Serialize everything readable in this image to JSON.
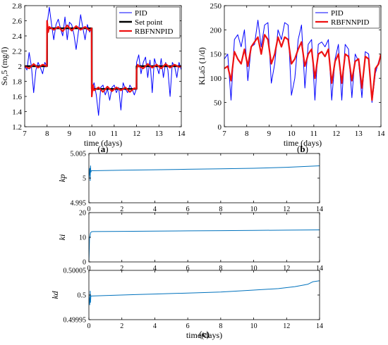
{
  "chart_data": [
    {
      "type": "line",
      "panel_label": "(a)",
      "xlabel": "time (days)",
      "ylabel": "So,5 (mg/l)",
      "xlim": [
        7,
        14
      ],
      "ylim": [
        1.2,
        2.8
      ],
      "xticks": [
        7,
        8,
        9,
        10,
        11,
        12,
        13,
        14
      ],
      "yticks": [
        1.2,
        1.4,
        1.6,
        1.8,
        2,
        2.2,
        2.4,
        2.6,
        2.8
      ],
      "legend": "top-right",
      "series": [
        {
          "name": "PID",
          "color": "#0000ff",
          "x": [
            7,
            7.1,
            7.2,
            7.3,
            7.4,
            7.5,
            7.6,
            7.7,
            7.8,
            7.9,
            7.99,
            8.0,
            8.1,
            8.2,
            8.3,
            8.4,
            8.5,
            8.6,
            8.7,
            8.8,
            8.9,
            9.0,
            9.1,
            9.2,
            9.3,
            9.4,
            9.5,
            9.6,
            9.7,
            9.8,
            9.9,
            9.99,
            10.0,
            10.1,
            10.2,
            10.3,
            10.4,
            10.5,
            10.6,
            10.7,
            10.8,
            10.9,
            11.0,
            11.1,
            11.2,
            11.3,
            11.4,
            11.5,
            11.6,
            11.7,
            11.8,
            11.9,
            11.99,
            12.0,
            12.1,
            12.2,
            12.3,
            12.4,
            12.5,
            12.6,
            12.7,
            12.8,
            12.9,
            13.0,
            13.1,
            13.2,
            13.3,
            13.4,
            13.5,
            13.6,
            13.7,
            13.8,
            13.9,
            14.0
          ],
          "y": [
            2.0,
            1.95,
            2.18,
            2.0,
            1.65,
            1.95,
            2.05,
            1.98,
            1.9,
            2.05,
            2.0,
            2.55,
            2.78,
            2.55,
            2.35,
            2.55,
            2.62,
            2.5,
            2.4,
            2.65,
            2.35,
            2.58,
            2.55,
            2.42,
            2.22,
            2.45,
            2.68,
            2.5,
            2.35,
            2.55,
            2.45,
            2.5,
            1.68,
            1.78,
            1.62,
            1.35,
            1.72,
            1.75,
            1.62,
            1.7,
            1.55,
            1.72,
            1.75,
            1.65,
            1.72,
            1.42,
            1.78,
            1.7,
            1.65,
            1.75,
            1.7,
            1.62,
            1.7,
            2.05,
            2.15,
            1.9,
            2.05,
            2.12,
            1.85,
            2.08,
            1.65,
            2.1,
            2.0,
            1.9,
            2.1,
            1.85,
            2.05,
            1.95,
            1.6,
            2.05,
            2.0,
            1.85,
            2.05,
            1.95
          ]
        },
        {
          "name": "Set point",
          "color": "#000000",
          "x": [
            7,
            8,
            8,
            10,
            10,
            12,
            12,
            14
          ],
          "y": [
            2,
            2,
            2.5,
            2.5,
            1.7,
            1.7,
            2,
            2
          ]
        },
        {
          "name": "RBFNNPID",
          "color": "#ee1111",
          "x": [
            7,
            7.2,
            7.4,
            7.6,
            7.8,
            7.99,
            8.0,
            8.05,
            8.1,
            8.3,
            8.5,
            8.7,
            8.9,
            9.1,
            9.3,
            9.5,
            9.7,
            9.9,
            9.99,
            10.0,
            10.05,
            10.1,
            10.3,
            10.5,
            10.7,
            10.9,
            11.1,
            11.3,
            11.5,
            11.7,
            11.9,
            11.99,
            12.0,
            12.05,
            12.1,
            12.3,
            12.5,
            12.7,
            12.9,
            13.1,
            13.3,
            13.5,
            13.7,
            13.9,
            14.0
          ],
          "y": [
            2.0,
            1.97,
            2.03,
            1.98,
            2.02,
            2.0,
            2.6,
            2.45,
            2.52,
            2.48,
            2.52,
            2.46,
            2.54,
            2.47,
            2.53,
            2.48,
            2.52,
            2.47,
            2.5,
            1.6,
            1.75,
            1.68,
            1.72,
            1.66,
            1.73,
            1.67,
            1.72,
            1.68,
            1.72,
            1.66,
            1.71,
            1.7,
            1.95,
            2.02,
            2.0,
            1.97,
            2.03,
            1.98,
            2.02,
            1.97,
            2.03,
            1.98,
            2.02,
            1.99,
            2.0
          ]
        }
      ]
    },
    {
      "type": "line",
      "panel_label": "(b)",
      "xlabel": "time (days)",
      "ylabel": "KLa5 (1/d)",
      "xlim": [
        7,
        14
      ],
      "ylim": [
        0,
        250
      ],
      "xticks": [
        7,
        8,
        9,
        10,
        11,
        12,
        13,
        14
      ],
      "yticks": [
        0,
        50,
        100,
        150,
        200,
        250
      ],
      "legend": "top-right",
      "series": [
        {
          "name": "PID",
          "color": "#0000ff",
          "x": [
            7,
            7.15,
            7.3,
            7.45,
            7.6,
            7.75,
            7.9,
            8.05,
            8.2,
            8.35,
            8.5,
            8.65,
            8.8,
            8.95,
            9.1,
            9.25,
            9.4,
            9.55,
            9.7,
            9.85,
            10.0,
            10.15,
            10.3,
            10.45,
            10.6,
            10.75,
            10.9,
            11.05,
            11.2,
            11.35,
            11.5,
            11.65,
            11.8,
            11.95,
            12.1,
            12.25,
            12.4,
            12.55,
            12.7,
            12.85,
            13.0,
            13.15,
            13.3,
            13.45,
            13.6,
            13.75,
            13.9,
            14.0
          ],
          "y": [
            140,
            150,
            55,
            180,
            190,
            165,
            200,
            95,
            165,
            170,
            220,
            165,
            210,
            215,
            90,
            130,
            200,
            180,
            215,
            210,
            65,
            100,
            180,
            210,
            80,
            170,
            180,
            55,
            170,
            175,
            165,
            180,
            55,
            140,
            170,
            55,
            170,
            160,
            60,
            150,
            135,
            60,
            155,
            150,
            50,
            110,
            135,
            150
          ]
        },
        {
          "name": "RBFNNPID",
          "color": "#ee1111",
          "x": [
            7,
            7.15,
            7.3,
            7.45,
            7.6,
            7.75,
            7.9,
            8.05,
            8.2,
            8.35,
            8.5,
            8.65,
            8.8,
            8.95,
            9.1,
            9.25,
            9.4,
            9.55,
            9.7,
            9.85,
            10.0,
            10.15,
            10.3,
            10.45,
            10.6,
            10.75,
            10.9,
            11.05,
            11.2,
            11.35,
            11.5,
            11.65,
            11.8,
            11.95,
            12.1,
            12.25,
            12.4,
            12.55,
            12.7,
            12.85,
            13.0,
            13.15,
            13.3,
            13.45,
            13.6,
            13.75,
            13.9,
            14.0
          ],
          "y": [
            120,
            125,
            95,
            155,
            140,
            130,
            160,
            125,
            165,
            175,
            185,
            150,
            190,
            180,
            130,
            150,
            185,
            165,
            185,
            180,
            130,
            140,
            160,
            175,
            125,
            150,
            160,
            100,
            150,
            155,
            145,
            160,
            90,
            135,
            150,
            90,
            150,
            145,
            95,
            135,
            140,
            80,
            145,
            140,
            55,
            120,
            130,
            150
          ]
        }
      ]
    },
    {
      "type": "line",
      "ylabel": "kp",
      "xlim": [
        0,
        14
      ],
      "ylim": [
        4.995,
        5.005
      ],
      "xticks": [
        0,
        2,
        4,
        6,
        8,
        10,
        12,
        14
      ],
      "yticks": [
        4.995,
        5,
        5.005
      ],
      "ytick_labels": [
        "4.995",
        "5",
        "5.005"
      ],
      "series": [
        {
          "color": "#0072bd",
          "x": [
            0,
            0.05,
            0.08,
            0.1,
            0.12,
            0.15,
            0.2,
            2,
            4,
            6,
            8,
            10,
            12,
            14
          ],
          "y": [
            5.0,
            5.002,
            4.9995,
            5.0025,
            5.0012,
            5.0015,
            5.0015,
            5.0016,
            5.0017,
            5.0018,
            5.0019,
            5.002,
            5.0022,
            5.0025
          ]
        }
      ]
    },
    {
      "type": "line",
      "ylabel": "ki",
      "xlim": [
        0,
        14
      ],
      "ylim": [
        0,
        20
      ],
      "xticks": [
        0,
        2,
        4,
        6,
        8,
        10,
        12,
        14
      ],
      "yticks": [
        0,
        10,
        20
      ],
      "series": [
        {
          "color": "#0072bd",
          "x": [
            0,
            0.04,
            0.06,
            0.1,
            0.15,
            0.25,
            2,
            4,
            6,
            8,
            10,
            12,
            14
          ],
          "y": [
            0,
            9.5,
            10,
            11.8,
            12.2,
            12.3,
            12.4,
            12.5,
            12.6,
            12.7,
            12.8,
            12.9,
            13.0
          ]
        }
      ]
    },
    {
      "type": "line",
      "panel_label": "(c)",
      "xlabel": "time(days)",
      "ylabel": "kd",
      "xlim": [
        0,
        14
      ],
      "ylim": [
        0.49995,
        0.50005
      ],
      "xticks": [
        0,
        2,
        4,
        6,
        8,
        10,
        12,
        14
      ],
      "yticks": [
        0.49995,
        0.5,
        0.50005
      ],
      "ytick_labels": [
        "0.49995",
        "0.5",
        "0.50005"
      ],
      "series": [
        {
          "color": "#0072bd",
          "x": [
            0,
            0.05,
            0.08,
            0.1,
            0.12,
            0.2,
            1,
            2,
            3,
            4,
            5,
            6,
            7,
            8,
            9,
            10,
            11,
            11.5,
            12,
            12.5,
            13,
            13.3,
            13.6,
            14
          ],
          "y": [
            0.5,
            0.49998,
            0.500008,
            0.499985,
            0.499998,
            0.499998,
            0.499999,
            0.5,
            0.500001,
            0.500002,
            0.500003,
            0.500004,
            0.500005,
            0.500006,
            0.500008,
            0.50001,
            0.500012,
            0.500013,
            0.500015,
            0.500017,
            0.50002,
            0.500022,
            0.500027,
            0.500029
          ]
        }
      ]
    }
  ]
}
